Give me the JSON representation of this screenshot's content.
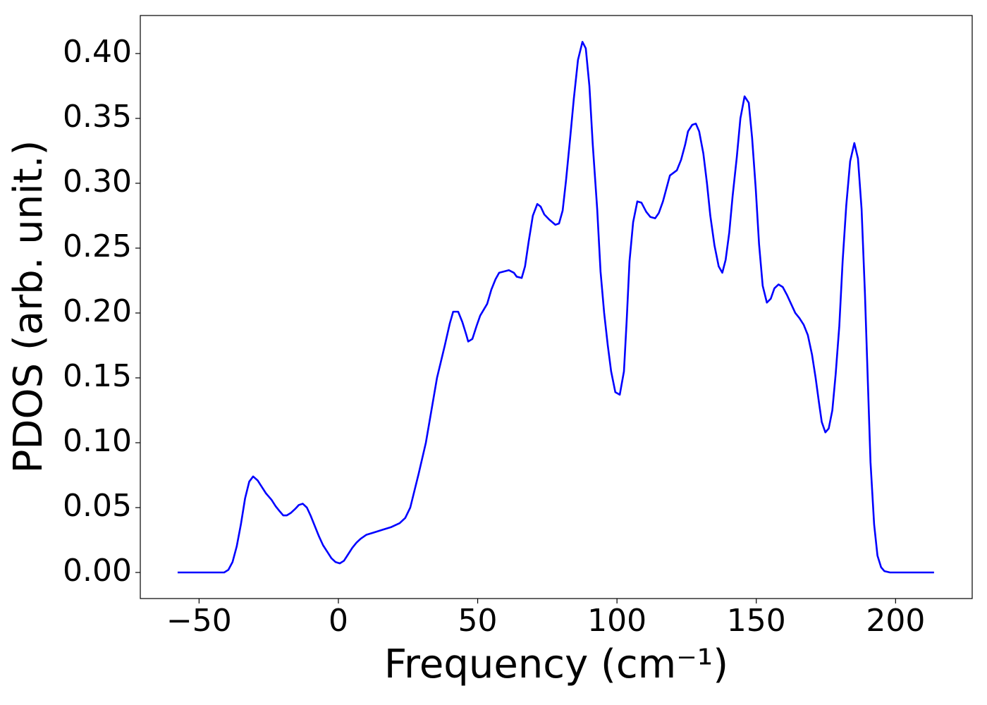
{
  "chart_data": {
    "type": "line",
    "x_label": "Frequency (cm⁻¹)",
    "y_label": "PDOS (arb. unit.)",
    "xlim": [
      -71.1,
      227.5
    ],
    "ylim": [
      -0.0201,
      0.4293
    ],
    "xticks": [
      {
        "value": -50,
        "label": "−50"
      },
      0,
      50,
      100,
      150,
      200
    ],
    "yticks": [
      {
        "value": 0,
        "label": "0.00"
      },
      {
        "value": 0.05,
        "label": "0.05"
      },
      {
        "value": 0.1,
        "label": "0.10"
      },
      {
        "value": 0.15,
        "label": "0.15"
      },
      {
        "value": 0.2,
        "label": "0.20"
      },
      {
        "value": 0.25,
        "label": "0.25"
      },
      {
        "value": 0.3,
        "label": "0.30"
      },
      {
        "value": 0.35,
        "label": "0.35"
      },
      {
        "value": 0.4,
        "label": "0.40"
      }
    ],
    "grid": false,
    "series": [
      {
        "color": "#0000ff",
        "x": [
          -57.7,
          -41,
          -39.5,
          -38,
          -36.5,
          -35,
          -33.5,
          -32,
          -30.6,
          -29,
          -27.5,
          -26,
          -24,
          -22.5,
          -21,
          -19.8,
          -18.5,
          -17,
          -15.5,
          -14.2,
          -12.8,
          -11.3,
          -10,
          -8.5,
          -7,
          -5.5,
          -4,
          -2.5,
          -1,
          0.5,
          2,
          3.5,
          5,
          6.5,
          8,
          10,
          13,
          16,
          19,
          22,
          24,
          25.8,
          27.3,
          28.8,
          31.4,
          35.4,
          38.2,
          40,
          41.2,
          43,
          44.5,
          45.8,
          46.6,
          48.1,
          49.6,
          50.9,
          53.4,
          54.9,
          56.4,
          57.7,
          61.2,
          63,
          64,
          65.8,
          67,
          68.3,
          69.8,
          71.4,
          72.6,
          73.9,
          75.7,
          77.9,
          79.2,
          80.5,
          81.7,
          83.2,
          84.5,
          86,
          87.6,
          88.8,
          90.1,
          91.3,
          92.9,
          94.1,
          95.4,
          96.7,
          97.9,
          99.4,
          101,
          102.5,
          103.5,
          104.5,
          105.8,
          107.3,
          108.8,
          110.5,
          112,
          113.7,
          115,
          116.5,
          118,
          119,
          121.5,
          123,
          124.5,
          125.5,
          127,
          128.3,
          129.5,
          131,
          132.3,
          133.5,
          135,
          136.5,
          137.8,
          139,
          140.3,
          141.5,
          143,
          144.3,
          145.8,
          147.3,
          148.5,
          149.8,
          151,
          152.3,
          153.8,
          155.2,
          156.5,
          158,
          159.5,
          161,
          162.5,
          164,
          165.5,
          167,
          168.5,
          170,
          171.3,
          172.5,
          173.5,
          174.8,
          176,
          177.3,
          178.5,
          179.8,
          181,
          182.3,
          183.7,
          185.2,
          186.5,
          187.8,
          189,
          190,
          191,
          192.3,
          193.5,
          194.8,
          196,
          198,
          213.8
        ],
        "values": [
          0,
          0,
          0.002,
          0.008,
          0.02,
          0.037,
          0.057,
          0.07,
          0.074,
          0.071,
          0.066,
          0.061,
          0.056,
          0.051,
          0.047,
          0.044,
          0.044,
          0.046,
          0.049,
          0.052,
          0.053,
          0.05,
          0.044,
          0.036,
          0.028,
          0.021,
          0.016,
          0.011,
          0.008,
          0.007,
          0.009,
          0.014,
          0.019,
          0.023,
          0.026,
          0.029,
          0.031,
          0.033,
          0.035,
          0.038,
          0.042,
          0.05,
          0.063,
          0.076,
          0.1,
          0.15,
          0.175,
          0.192,
          0.201,
          0.201,
          0.193,
          0.184,
          0.178,
          0.18,
          0.19,
          0.198,
          0.207,
          0.218,
          0.226,
          0.231,
          0.233,
          0.231,
          0.228,
          0.227,
          0.236,
          0.255,
          0.275,
          0.284,
          0.282,
          0.276,
          0.272,
          0.268,
          0.269,
          0.279,
          0.302,
          0.335,
          0.365,
          0.395,
          0.409,
          0.404,
          0.375,
          0.33,
          0.28,
          0.232,
          0.2,
          0.175,
          0.155,
          0.139,
          0.137,
          0.155,
          0.195,
          0.24,
          0.27,
          0.286,
          0.285,
          0.278,
          0.274,
          0.273,
          0.277,
          0.286,
          0.298,
          0.306,
          0.31,
          0.318,
          0.33,
          0.34,
          0.345,
          0.346,
          0.34,
          0.323,
          0.3,
          0.275,
          0.252,
          0.236,
          0.231,
          0.241,
          0.262,
          0.29,
          0.32,
          0.35,
          0.367,
          0.362,
          0.335,
          0.296,
          0.253,
          0.221,
          0.208,
          0.211,
          0.219,
          0.222,
          0.22,
          0.214,
          0.207,
          0.2,
          0.196,
          0.191,
          0.183,
          0.168,
          0.15,
          0.131,
          0.116,
          0.108,
          0.111,
          0.125,
          0.153,
          0.19,
          0.24,
          0.283,
          0.317,
          0.331,
          0.319,
          0.28,
          0.215,
          0.15,
          0.085,
          0.037,
          0.013,
          0.004,
          0.001,
          0,
          0
        ]
      }
    ]
  }
}
